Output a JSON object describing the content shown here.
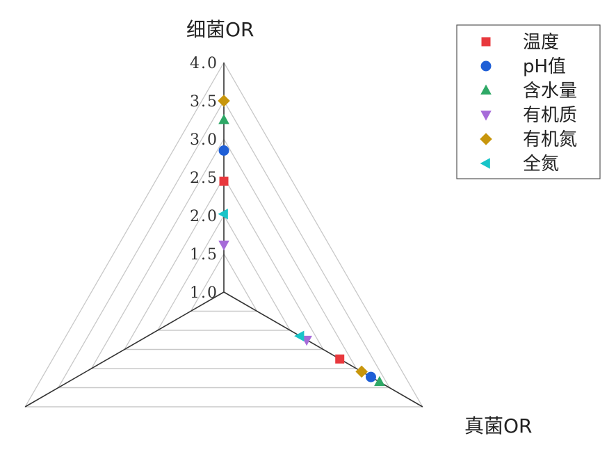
{
  "chart_data": {
    "type": "radar",
    "axes": [
      "细菌OR",
      "真菌OR",
      ""
    ],
    "rlim": [
      1.0,
      4.0
    ],
    "ticks": [
      "1.0",
      "1.5",
      "2.0",
      "2.5",
      "3.0",
      "3.5",
      "4.0"
    ],
    "tick_values": [
      1.0,
      1.5,
      2.0,
      2.5,
      3.0,
      3.5,
      4.0
    ],
    "grid": true,
    "legend_position": "top-right",
    "series": [
      {
        "name": "温度",
        "marker": "square",
        "color": "#e8383d",
        "values": [
          2.45,
          2.75
        ]
      },
      {
        "name": "pH值",
        "marker": "circle",
        "color": "#1f5fd6",
        "values": [
          2.85,
          3.22
        ]
      },
      {
        "name": "含水量",
        "marker": "triangle-up",
        "color": "#2ea866",
        "values": [
          3.25,
          3.35
        ]
      },
      {
        "name": "有机质",
        "marker": "triangle-down",
        "color": "#a66bd9",
        "values": [
          1.62,
          2.25
        ]
      },
      {
        "name": "有机氮",
        "marker": "diamond",
        "color": "#c8960c",
        "values": [
          3.5,
          3.08
        ]
      },
      {
        "name": "全氮",
        "marker": "triangle-left",
        "color": "#18c4c8",
        "values": [
          2.02,
          2.15
        ]
      }
    ]
  }
}
